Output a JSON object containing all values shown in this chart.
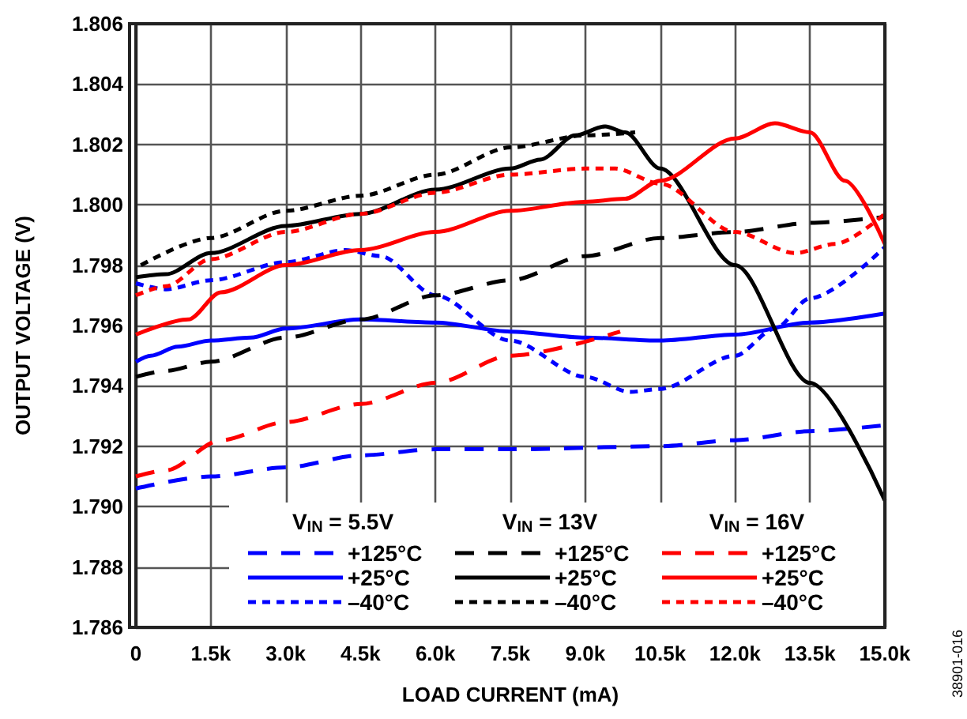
{
  "chart_data": {
    "type": "line",
    "xlabel": "LOAD CURRENT (mA)",
    "ylabel": "OUTPUT VOLTAGE (V)",
    "xlim": [
      0,
      15000
    ],
    "ylim": [
      1.786,
      1.806
    ],
    "xticks": [
      0,
      {
        "value": 1500,
        "label": "1.5k"
      },
      {
        "value": 3000,
        "label": "3.0k"
      },
      {
        "value": 4500,
        "label": "4.5k"
      },
      {
        "value": 6000,
        "label": "6.0k"
      },
      {
        "value": 7500,
        "label": "7.5k"
      },
      {
        "value": 9000,
        "label": "9.0k"
      },
      {
        "value": 10500,
        "label": "10.5k"
      },
      {
        "value": 12000,
        "label": "12.0k"
      },
      {
        "value": 13500,
        "label": "13.5k"
      },
      {
        "value": 15000,
        "label": "15.0k"
      }
    ],
    "yticks": [
      1.786,
      1.788,
      {
        "value": 1.79,
        "label": "1.790"
      },
      1.792,
      1.794,
      1.796,
      1.798,
      {
        "value": 1.8,
        "label": "1.800"
      },
      1.802,
      1.804,
      1.806
    ],
    "grid": true,
    "legend": "bottom",
    "marker": "none",
    "annotations": [
      "V$_{IN}$ = 5.5V",
      "V$_{IN}$ = 13V",
      "V$_{IN}$ = 16V",
      "38901-016"
    ],
    "series": [
      {
        "name": "+125°C",
        "color": "#0000ff",
        "line_style": "dashed",
        "x": [
          0,
          1500,
          3000,
          4500,
          6000,
          7500,
          10500,
          12000,
          13500,
          15000
        ],
        "values": [
          1.7906,
          1.791,
          1.7913,
          1.7917,
          1.7919,
          1.7919,
          1.792,
          1.7922,
          1.7925,
          1.7927
        ]
      },
      {
        "name": "+25°C",
        "color": "#0000ff",
        "line_style": "solid",
        "x": [
          0,
          300,
          840,
          1500,
          2300,
          3000,
          4500,
          6000,
          7500,
          9000,
          10500,
          12000,
          13500,
          15000
        ],
        "values": [
          1.7948,
          1.795,
          1.7953,
          1.7955,
          1.7956,
          1.7959,
          1.7962,
          1.7961,
          1.7958,
          1.7956,
          1.7955,
          1.7957,
          1.7961,
          1.7964
        ]
      },
      {
        "name": "–40°C",
        "color": "#0000ff",
        "line_style": "dotted",
        "x": [
          0,
          600,
          1500,
          3000,
          4200,
          4900,
          6000,
          7500,
          9000,
          9900,
          10500,
          12000,
          12800,
          13500,
          15000
        ],
        "values": [
          1.7974,
          1.7972,
          1.7975,
          1.7981,
          1.7985,
          1.7983,
          1.797,
          1.7955,
          1.7943,
          1.7938,
          1.7939,
          1.795,
          1.7959,
          1.7969,
          1.7986
        ]
      },
      {
        "name": "+125°C",
        "color": "#000000",
        "line_style": "dashed",
        "x": [
          0,
          600,
          1500,
          3000,
          4500,
          6000,
          7500,
          9000,
          10500,
          12000,
          13500,
          15000
        ],
        "values": [
          1.7943,
          1.7945,
          1.7948,
          1.7956,
          1.7962,
          1.797,
          1.7975,
          1.7983,
          1.7989,
          1.7991,
          1.7994,
          1.7996
        ]
      },
      {
        "name": "+25°C",
        "color": "#000000",
        "line_style": "solid",
        "x": [
          0,
          600,
          1500,
          3000,
          4500,
          6000,
          7500,
          8100,
          8800,
          9400,
          9800,
          10500,
          12000,
          13500,
          15000
        ],
        "values": [
          1.7976,
          1.7977,
          1.7984,
          1.7993,
          1.7997,
          1.8005,
          1.8012,
          1.8015,
          1.8023,
          1.8026,
          1.8024,
          1.8012,
          1.798,
          1.7941,
          1.7902
        ]
      },
      {
        "name": "–40°C",
        "color": "#000000",
        "line_style": "dotted",
        "x": [
          100,
          1500,
          3000,
          4500,
          6000,
          7500,
          9000,
          10000
        ],
        "values": [
          1.798,
          1.7989,
          1.7998,
          1.8003,
          1.801,
          1.8019,
          1.8023,
          1.8024
        ]
      },
      {
        "name": "+125°C",
        "color": "#ff0000",
        "line_style": "dashed",
        "x": [
          0,
          600,
          1700,
          3000,
          4500,
          6000,
          7500,
          9700
        ],
        "values": [
          1.791,
          1.7912,
          1.7922,
          1.7928,
          1.7934,
          1.7941,
          1.795,
          1.7958
        ]
      },
      {
        "name": "+25°C",
        "color": "#ff0000",
        "line_style": "solid",
        "x": [
          0,
          1050,
          1700,
          3000,
          4500,
          6000,
          7500,
          9000,
          9800,
          10500,
          12000,
          12800,
          13500,
          14200,
          15000
        ],
        "values": [
          1.7957,
          1.7962,
          1.7971,
          1.798,
          1.7985,
          1.7991,
          1.7998,
          1.8001,
          1.8002,
          1.8008,
          1.8022,
          1.8027,
          1.8024,
          1.8008,
          1.7987
        ]
      },
      {
        "name": "–40°C",
        "color": "#ff0000",
        "line_style": "dotted",
        "x": [
          0,
          600,
          1500,
          3000,
          4500,
          6000,
          7500,
          9000,
          9600,
          10500,
          12000,
          13200,
          14000,
          15000
        ],
        "values": [
          1.797,
          1.7973,
          1.7982,
          1.7991,
          1.7997,
          1.8004,
          1.801,
          1.8012,
          1.8012,
          1.8007,
          1.7991,
          1.7984,
          1.7987,
          1.7997
        ]
      }
    ]
  }
}
